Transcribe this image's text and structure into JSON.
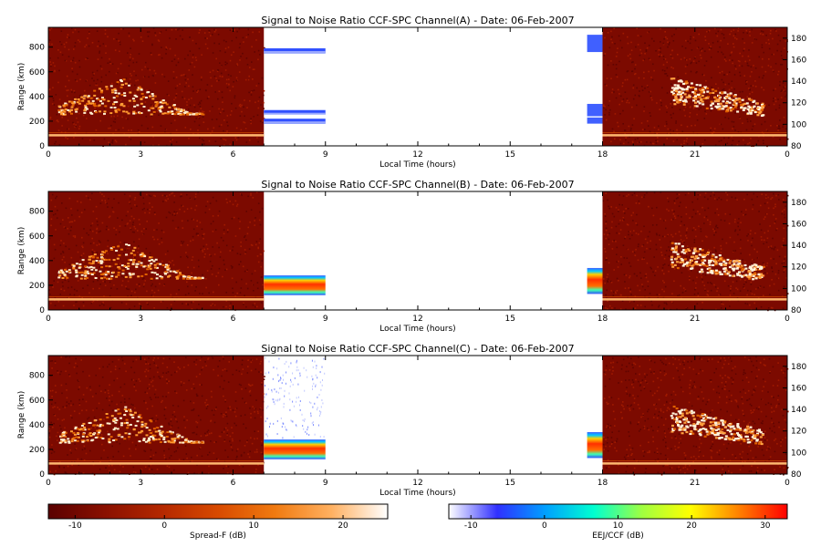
{
  "chart_data": [
    {
      "type": "heatmap",
      "title": "Signal to Noise Ratio CCF-SPC Channel(A) - Date: 06-Feb-2007",
      "xlabel": "Local Time (hours)",
      "ylabel": "Range (km)",
      "xlim": [
        0,
        24
      ],
      "x_ticks": [
        "0",
        "3",
        "6",
        "9",
        "12",
        "15",
        "18",
        "21",
        "0"
      ],
      "ylim": [
        0,
        960
      ],
      "y_ticks": [
        "0",
        "200",
        "400",
        "600",
        "800"
      ],
      "y2lim": [
        80,
        190
      ],
      "y2_ticks": [
        "80",
        "100",
        "120",
        "140",
        "160",
        "180"
      ],
      "segments": [
        {
          "scale": "Spread-F",
          "x": [
            0,
            7
          ]
        },
        {
          "scale": "EEJ/CCF",
          "x": [
            7,
            9
          ]
        },
        {
          "scale": "EEJ/CCF",
          "x": [
            17.5,
            18
          ]
        },
        {
          "scale": "Spread-F",
          "x": [
            18,
            24
          ]
        }
      ]
    },
    {
      "type": "heatmap",
      "title": "Signal to Noise Ratio CCF-SPC Channel(B) - Date: 06-Feb-2007",
      "xlabel": "Local Time (hours)",
      "ylabel": "Range (km)",
      "xlim": [
        0,
        24
      ],
      "x_ticks": [
        "0",
        "3",
        "6",
        "9",
        "12",
        "15",
        "18",
        "21",
        "0"
      ],
      "ylim": [
        0,
        960
      ],
      "y_ticks": [
        "0",
        "200",
        "400",
        "600",
        "800"
      ],
      "y2lim": [
        80,
        190
      ],
      "y2_ticks": [
        "80",
        "100",
        "120",
        "140",
        "160",
        "180"
      ],
      "segments": [
        {
          "scale": "Spread-F",
          "x": [
            0,
            7
          ]
        },
        {
          "scale": "EEJ/CCF",
          "x": [
            7,
            9
          ]
        },
        {
          "scale": "EEJ/CCF",
          "x": [
            17.5,
            18
          ]
        },
        {
          "scale": "Spread-F",
          "x": [
            18,
            24
          ]
        }
      ]
    },
    {
      "type": "heatmap",
      "title": "Signal to Noise Ratio CCF-SPC Channel(C) - Date: 06-Feb-2007",
      "xlabel": "Local Time (hours)",
      "ylabel": "Range (km)",
      "xlim": [
        0,
        24
      ],
      "x_ticks": [
        "0",
        "3",
        "6",
        "9",
        "12",
        "15",
        "18",
        "21",
        "0"
      ],
      "ylim": [
        0,
        960
      ],
      "y_ticks": [
        "0",
        "200",
        "400",
        "600",
        "800"
      ],
      "y2lim": [
        80,
        190
      ],
      "y2_ticks": [
        "80",
        "100",
        "120",
        "140",
        "160",
        "180"
      ],
      "segments": [
        {
          "scale": "Spread-F",
          "x": [
            0,
            7
          ]
        },
        {
          "scale": "EEJ/CCF",
          "x": [
            7,
            9
          ]
        },
        {
          "scale": "EEJ/CCF",
          "x": [
            17.5,
            18
          ]
        },
        {
          "scale": "Spread-F",
          "x": [
            18,
            24
          ]
        }
      ]
    }
  ],
  "colorbars": [
    {
      "label": "Spread-F (dB)",
      "range": [
        -13,
        25
      ],
      "ticks": [
        "-10",
        "0",
        "10",
        "20"
      ],
      "colors": [
        "#5a0000",
        "#8a1000",
        "#b42800",
        "#d84a00",
        "#f07a10",
        "#ffb060",
        "#ffffff"
      ]
    },
    {
      "label": "EEJ/CCF (dB)",
      "range": [
        -13,
        33
      ],
      "ticks": [
        "-10",
        "0",
        "10",
        "20",
        "30"
      ],
      "colors": [
        "#ffffff",
        "#3030ff",
        "#00a0ff",
        "#00ffd0",
        "#a0ff40",
        "#ffff00",
        "#ff8000",
        "#ff0000"
      ]
    }
  ]
}
